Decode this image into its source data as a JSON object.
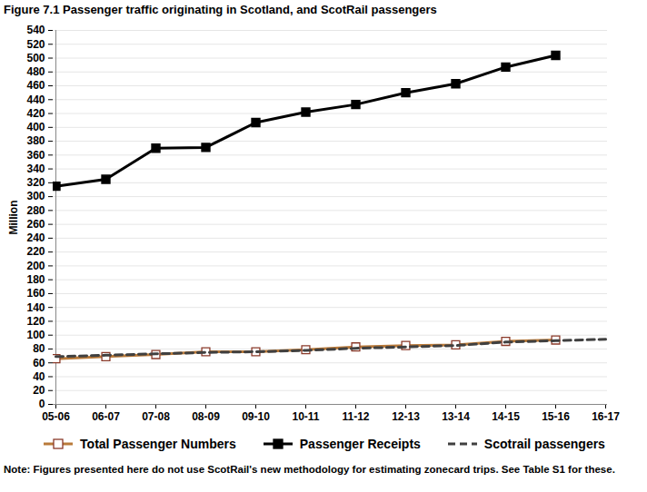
{
  "chart_data": {
    "type": "line",
    "title": "Figure 7.1   Passenger traffic originating in Scotland, and ScotRail passengers",
    "y_label": "Million",
    "note": "Note: Figures presented here do not use ScotRail's new methodology for estimating zonecard trips. See Table S1 for these.",
    "categories": [
      "05-06",
      "06-07",
      "07-08",
      "08-09",
      "09-10",
      "10-11",
      "11-12",
      "12-13",
      "13-14",
      "14-15",
      "15-16",
      "16-17"
    ],
    "series": [
      {
        "name": "Total Passenger Numbers",
        "color": "#b97a3a",
        "marker": "square_open",
        "line_style": "solid",
        "values": [
          66,
          69,
          72,
          76,
          76,
          79,
          83,
          85,
          86,
          91,
          93,
          null
        ]
      },
      {
        "name": "Passenger Receipts",
        "color": "#000000",
        "marker": "square",
        "line_style": "solid",
        "values": [
          315,
          325,
          370,
          371,
          407,
          422,
          433,
          450,
          463,
          487,
          504,
          null
        ]
      },
      {
        "name": "Scotrail passengers",
        "color": "#404040",
        "marker": "none",
        "line_style": "dashed",
        "values": [
          69,
          71,
          73,
          75,
          76,
          78,
          81,
          83,
          85,
          90,
          92,
          94
        ]
      }
    ],
    "ylim": [
      0,
      540
    ],
    "yticks": [
      0,
      20,
      40,
      60,
      80,
      100,
      120,
      140,
      160,
      180,
      200,
      220,
      240,
      260,
      280,
      300,
      320,
      340,
      360,
      380,
      400,
      420,
      440,
      460,
      480,
      500,
      520,
      540
    ],
    "grid": true,
    "legend": "bottom"
  }
}
